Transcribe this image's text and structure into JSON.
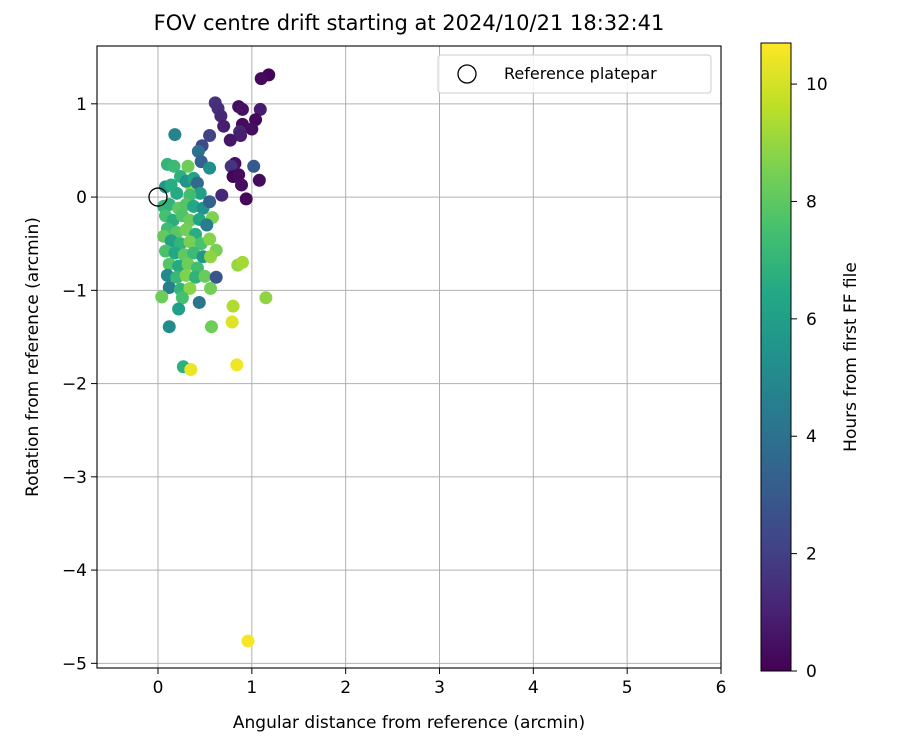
{
  "chart_data": {
    "type": "scatter",
    "title": "FOV centre drift starting at 2024/10/21 18:32:41",
    "xlabel": "Angular distance from reference (arcmin)",
    "ylabel": "Rotation from reference (arcmin)",
    "xlim": [
      -0.65,
      6.0
    ],
    "ylim": [
      -5.05,
      1.62
    ],
    "xticks": [
      "0",
      "1",
      "2",
      "3",
      "4",
      "5",
      "6"
    ],
    "yticks": [
      "1",
      "0",
      "−1",
      "−2",
      "−3",
      "−4",
      "−5"
    ],
    "grid": true,
    "legend": {
      "placement": "top-right",
      "entries": [
        "Reference platepar"
      ]
    },
    "reference_point": {
      "x": 0.0,
      "y": 0.0
    },
    "colorbar": {
      "label": "Hours from first FF file",
      "colormap": "viridis",
      "range": [
        0,
        10.7
      ],
      "ticks": [
        "0",
        "2",
        "4",
        "6",
        "8",
        "10"
      ]
    },
    "points": [
      {
        "x": 1.18,
        "y": 1.31,
        "h": 0.1
      },
      {
        "x": 1.1,
        "y": 1.27,
        "h": 0.2
      },
      {
        "x": 0.86,
        "y": 0.97,
        "h": 0.3
      },
      {
        "x": 0.9,
        "y": 0.94,
        "h": 0.5
      },
      {
        "x": 1.09,
        "y": 0.94,
        "h": 0.8
      },
      {
        "x": 0.9,
        "y": 0.78,
        "h": 0.3
      },
      {
        "x": 1.04,
        "y": 0.83,
        "h": 0.2
      },
      {
        "x": 1.0,
        "y": 0.73,
        "h": 0.4
      },
      {
        "x": 0.87,
        "y": 0.7,
        "h": 1.2
      },
      {
        "x": 0.88,
        "y": 0.66,
        "h": 0.9
      },
      {
        "x": 0.77,
        "y": 0.61,
        "h": 0.6
      },
      {
        "x": 0.82,
        "y": 0.36,
        "h": 0.5
      },
      {
        "x": 1.02,
        "y": 0.33,
        "h": 3.0
      },
      {
        "x": 0.78,
        "y": 0.33,
        "h": 1.6
      },
      {
        "x": 0.8,
        "y": 0.22,
        "h": 0.1
      },
      {
        "x": 0.86,
        "y": 0.24,
        "h": 0.3
      },
      {
        "x": 0.89,
        "y": 0.13,
        "h": 0.4
      },
      {
        "x": 1.08,
        "y": 0.18,
        "h": 0.3
      },
      {
        "x": 0.94,
        "y": -0.02,
        "h": 0.2
      },
      {
        "x": 0.68,
        "y": 0.02,
        "h": 1.2
      },
      {
        "x": 0.61,
        "y": 1.01,
        "h": 1.5
      },
      {
        "x": 0.64,
        "y": 0.95,
        "h": 1.4
      },
      {
        "x": 0.67,
        "y": 0.87,
        "h": 1.2
      },
      {
        "x": 0.7,
        "y": 0.76,
        "h": 0.9
      },
      {
        "x": 0.55,
        "y": 0.66,
        "h": 2.1
      },
      {
        "x": 0.47,
        "y": 0.55,
        "h": 2.4
      },
      {
        "x": 0.43,
        "y": 0.49,
        "h": 4.0
      },
      {
        "x": 0.46,
        "y": 0.38,
        "h": 3.3
      },
      {
        "x": 0.55,
        "y": 0.31,
        "h": 5.3
      },
      {
        "x": 0.18,
        "y": 0.67,
        "h": 4.8
      },
      {
        "x": 0.1,
        "y": 0.35,
        "h": 7.0
      },
      {
        "x": 0.17,
        "y": 0.33,
        "h": 7.2
      },
      {
        "x": 0.32,
        "y": 0.33,
        "h": 8.3
      },
      {
        "x": 0.08,
        "y": 0.11,
        "h": 5.6
      },
      {
        "x": 0.14,
        "y": 0.13,
        "h": 6.6
      },
      {
        "x": 0.36,
        "y": 0.11,
        "h": 8.8
      },
      {
        "x": 0.24,
        "y": 0.22,
        "h": 6.8
      },
      {
        "x": 0.3,
        "y": 0.17,
        "h": 5.5
      },
      {
        "x": 0.38,
        "y": 0.2,
        "h": 6.2
      },
      {
        "x": 0.42,
        "y": 0.15,
        "h": 3.7
      },
      {
        "x": 0.45,
        "y": 0.04,
        "h": 6.0
      },
      {
        "x": 0.34,
        "y": 0.02,
        "h": 7.4
      },
      {
        "x": 0.2,
        "y": 0.04,
        "h": 6.5
      },
      {
        "x": 0.06,
        "y": -0.1,
        "h": 7.1
      },
      {
        "x": 0.12,
        "y": -0.08,
        "h": 6.9
      },
      {
        "x": 0.22,
        "y": -0.12,
        "h": 8.0
      },
      {
        "x": 0.3,
        "y": -0.08,
        "h": 7.8
      },
      {
        "x": 0.38,
        "y": -0.1,
        "h": 6.4
      },
      {
        "x": 0.48,
        "y": -0.12,
        "h": 5.4
      },
      {
        "x": 0.55,
        "y": -0.05,
        "h": 3.4
      },
      {
        "x": 0.58,
        "y": -0.22,
        "h": 8.6
      },
      {
        "x": 0.08,
        "y": -0.2,
        "h": 7.5
      },
      {
        "x": 0.16,
        "y": -0.25,
        "h": 6.7
      },
      {
        "x": 0.26,
        "y": -0.2,
        "h": 7.7
      },
      {
        "x": 0.34,
        "y": -0.25,
        "h": 8.2
      },
      {
        "x": 0.44,
        "y": -0.24,
        "h": 6.3
      },
      {
        "x": 0.52,
        "y": -0.3,
        "h": 4.4
      },
      {
        "x": 0.1,
        "y": -0.34,
        "h": 7.3
      },
      {
        "x": 0.2,
        "y": -0.38,
        "h": 7.9
      },
      {
        "x": 0.3,
        "y": -0.35,
        "h": 8.4
      },
      {
        "x": 0.4,
        "y": -0.4,
        "h": 6.6
      },
      {
        "x": 0.06,
        "y": -0.42,
        "h": 8.1
      },
      {
        "x": 0.14,
        "y": -0.47,
        "h": 6.1
      },
      {
        "x": 0.24,
        "y": -0.5,
        "h": 7.0
      },
      {
        "x": 0.34,
        "y": -0.48,
        "h": 8.5
      },
      {
        "x": 0.46,
        "y": -0.5,
        "h": 7.6
      },
      {
        "x": 0.55,
        "y": -0.45,
        "h": 8.7
      },
      {
        "x": 0.62,
        "y": -0.57,
        "h": 8.5
      },
      {
        "x": 0.08,
        "y": -0.58,
        "h": 7.6
      },
      {
        "x": 0.18,
        "y": -0.6,
        "h": 6.4
      },
      {
        "x": 0.28,
        "y": -0.62,
        "h": 8.0
      },
      {
        "x": 0.38,
        "y": -0.6,
        "h": 7.2
      },
      {
        "x": 0.48,
        "y": -0.64,
        "h": 5.7
      },
      {
        "x": 0.56,
        "y": -0.64,
        "h": 8.9
      },
      {
        "x": 0.12,
        "y": -0.72,
        "h": 7.8
      },
      {
        "x": 0.22,
        "y": -0.74,
        "h": 6.5
      },
      {
        "x": 0.32,
        "y": -0.72,
        "h": 8.3
      },
      {
        "x": 0.42,
        "y": -0.76,
        "h": 7.4
      },
      {
        "x": 0.1,
        "y": -0.84,
        "h": 5.0
      },
      {
        "x": 0.2,
        "y": -0.86,
        "h": 7.1
      },
      {
        "x": 0.3,
        "y": -0.84,
        "h": 8.6
      },
      {
        "x": 0.4,
        "y": -0.86,
        "h": 6.9
      },
      {
        "x": 0.5,
        "y": -0.85,
        "h": 8.2
      },
      {
        "x": 0.62,
        "y": -0.86,
        "h": 2.8
      },
      {
        "x": 0.12,
        "y": -0.97,
        "h": 4.6
      },
      {
        "x": 0.24,
        "y": -0.99,
        "h": 7.0
      },
      {
        "x": 0.34,
        "y": -0.98,
        "h": 8.8
      },
      {
        "x": 0.56,
        "y": -0.98,
        "h": 8.4
      },
      {
        "x": 0.04,
        "y": -1.07,
        "h": 8.3
      },
      {
        "x": 0.26,
        "y": -1.08,
        "h": 7.5
      },
      {
        "x": 0.44,
        "y": -1.13,
        "h": 4.2
      },
      {
        "x": 0.22,
        "y": -1.2,
        "h": 6.0
      },
      {
        "x": 0.12,
        "y": -1.39,
        "h": 5.1
      },
      {
        "x": 0.57,
        "y": -1.39,
        "h": 8.3
      },
      {
        "x": 0.8,
        "y": -1.17,
        "h": 9.4
      },
      {
        "x": 1.15,
        "y": -1.08,
        "h": 8.9
      },
      {
        "x": 0.85,
        "y": -0.73,
        "h": 9.0
      },
      {
        "x": 0.9,
        "y": -0.7,
        "h": 9.2
      },
      {
        "x": 0.79,
        "y": -1.34,
        "h": 10.2
      },
      {
        "x": 0.84,
        "y": -1.8,
        "h": 10.5
      },
      {
        "x": 0.27,
        "y": -1.82,
        "h": 6.8
      },
      {
        "x": 0.35,
        "y": -1.85,
        "h": 10.4
      },
      {
        "x": 0.96,
        "y": -4.76,
        "h": 10.6
      }
    ]
  }
}
